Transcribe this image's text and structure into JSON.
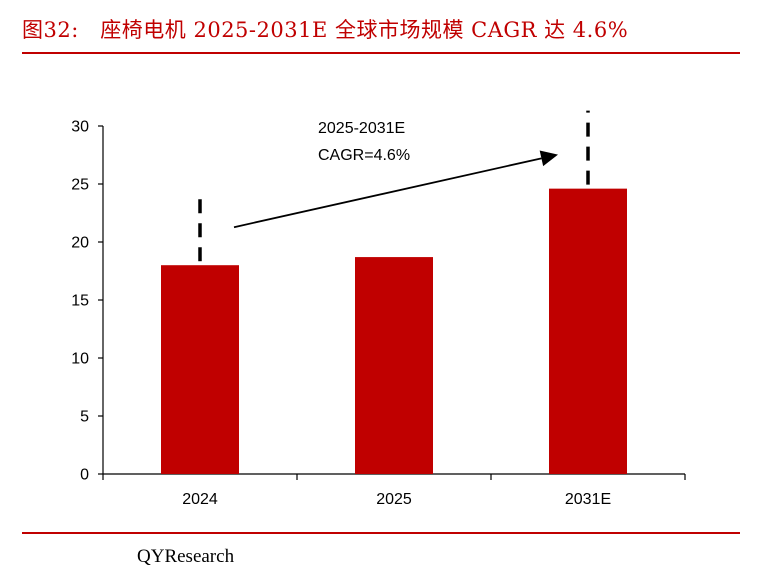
{
  "header": {
    "title": "图32:　座椅电机 2025-2031E 全球市场规模 CAGR 达 4.6%"
  },
  "colors": {
    "accent": "#c00000",
    "bar": "#c00000",
    "axis": "#000000"
  },
  "chart_data": {
    "type": "bar",
    "title": "座椅电机 2025-2031E 全球市场规模 CAGR 达 4.6%",
    "categories": [
      "2024",
      "2025",
      "2031E"
    ],
    "values": [
      18.0,
      18.7,
      24.6
    ],
    "ylim": [
      0,
      30
    ],
    "yticks": [
      0,
      5,
      10,
      15,
      20,
      25,
      30
    ],
    "xlabel": "",
    "ylabel": "",
    "grid": false,
    "annotation": {
      "line1": "2025-2031E",
      "line2": "CAGR=4.6%",
      "from_category": "2024",
      "to_category": "2031E"
    }
  },
  "footer": {
    "source": "QYResearch"
  }
}
